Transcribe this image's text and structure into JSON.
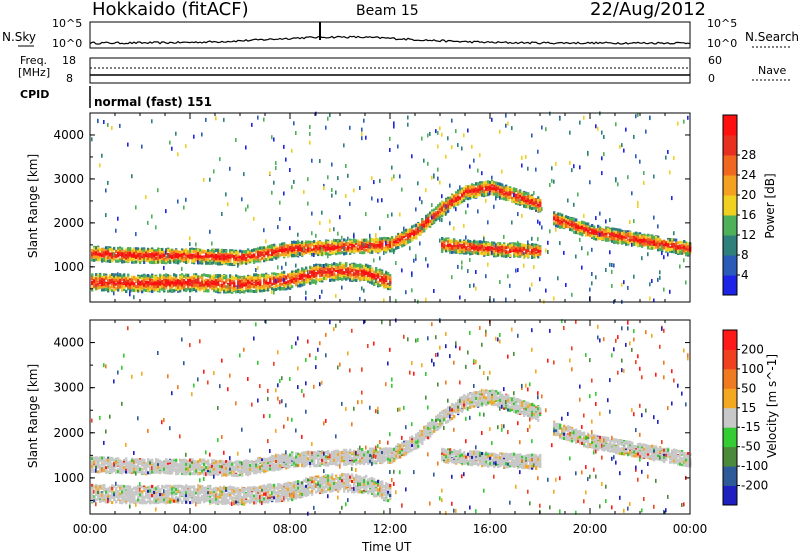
{
  "header": {
    "station": "Hokkaido (fitACF)",
    "beam": "Beam 15",
    "date": "22/Aug/2012"
  },
  "strip_labels": {
    "nsky": "N.Sky",
    "nsky_ticks": [
      "10^5",
      "10^0"
    ],
    "nsearch": "N.Search",
    "nsearch_ticks": [
      "10^5",
      "10^0"
    ],
    "freq_line1": "Freq.",
    "freq_line2": "[MHz]",
    "freq_ticks": [
      "18",
      "8"
    ],
    "nave": "Nave",
    "nave_ticks": [
      "60",
      "0"
    ],
    "cpid": "CPID",
    "cpid_value": "normal (fast) 151"
  },
  "colors": {
    "power": [
      "#1e24e6",
      "#2a5bb8",
      "#2f7f7a",
      "#4fb05a",
      "#f0d020",
      "#f4a020",
      "#f06820",
      "#e83020",
      "#ff1010"
    ],
    "velocity": [
      "#ff1a1a",
      "#f04020",
      "#f07a20",
      "#f4a820",
      "#c8c8c8",
      "#33cc33",
      "#4a8a3a",
      "#2e5a9a",
      "#2020c0"
    ]
  },
  "chart_data": [
    {
      "type": "heatmap",
      "title": "",
      "ylabel": "Slant Range [km]",
      "xlabel": "Time UT",
      "x_ticks": [
        "00:00",
        "04:00",
        "08:00",
        "12:00",
        "16:00",
        "20:00",
        "00:00"
      ],
      "y_ticks": [
        "1000",
        "2000",
        "3000",
        "4000"
      ],
      "ylim": [
        200,
        4500
      ],
      "colorbar_label": "Power [dB]",
      "colorbar_ticks": [
        "4",
        "8",
        "12",
        "16",
        "20",
        "24",
        "28"
      ],
      "colorbar_range": [
        0,
        32
      ],
      "echo_bands": [
        {
          "name": "low",
          "points": [
            [
              0,
              650
            ],
            [
              2,
              620
            ],
            [
              4,
              640
            ],
            [
              6,
              600
            ],
            [
              7,
              650
            ],
            [
              8,
              700
            ],
            [
              9,
              850
            ],
            [
              10,
              900
            ],
            [
              11,
              850
            ],
            [
              12,
              650
            ]
          ]
        },
        {
          "name": "mid",
          "points": [
            [
              0,
              1300
            ],
            [
              2,
              1250
            ],
            [
              4,
              1250
            ],
            [
              6,
              1200
            ],
            [
              8,
              1400
            ],
            [
              10,
              1450
            ],
            [
              12,
              1500
            ],
            [
              13,
              1800
            ],
            [
              14,
              2300
            ],
            [
              15,
              2700
            ],
            [
              16,
              2800
            ],
            [
              17,
              2600
            ],
            [
              18,
              2400
            ]
          ]
        },
        {
          "name": "late",
          "points": [
            [
              18.5,
              2100
            ],
            [
              20,
              1800
            ],
            [
              22,
              1600
            ],
            [
              24,
              1400
            ]
          ]
        },
        {
          "name": "afternoon",
          "points": [
            [
              14,
              1500
            ],
            [
              16,
              1400
            ],
            [
              18,
              1350
            ]
          ]
        }
      ]
    },
    {
      "type": "heatmap",
      "title": "",
      "ylabel": "Slant Range [km]",
      "xlabel": "Time UT",
      "x_ticks": [
        "00:00",
        "04:00",
        "08:00",
        "12:00",
        "16:00",
        "20:00",
        "00:00"
      ],
      "y_ticks": [
        "1000",
        "2000",
        "3000",
        "4000"
      ],
      "ylim": [
        200,
        4500
      ],
      "colorbar_label": "Velocity [m s^-1]",
      "colorbar_ticks": [
        "200",
        "100",
        "50",
        "15",
        "-15",
        "-50",
        "-100",
        "-200"
      ],
      "colorbar_range": [
        -250,
        250
      ]
    }
  ]
}
